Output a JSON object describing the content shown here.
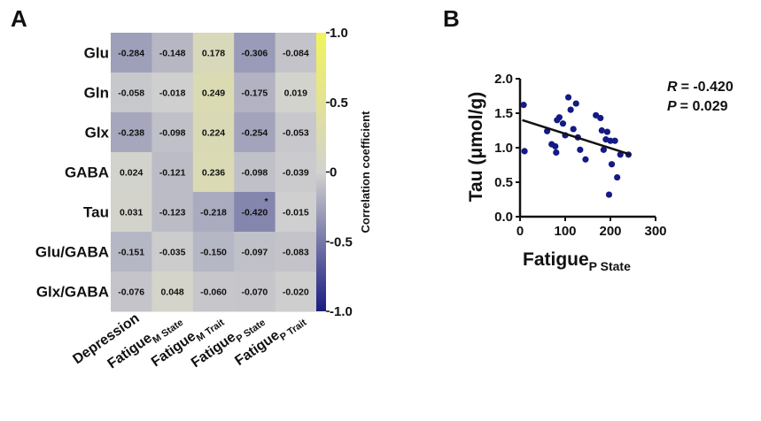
{
  "chart_data": [
    {
      "type": "heatmap",
      "panel_label": "A",
      "rows": [
        "Glu",
        "Gln",
        "Glx",
        "GABA",
        "Tau",
        "Glu/GABA",
        "Glx/GABA"
      ],
      "columns": [
        {
          "main": "Depression",
          "sub": ""
        },
        {
          "main": "Fatigue",
          "sub": "M State"
        },
        {
          "main": "Fatigue",
          "sub": "M Trait"
        },
        {
          "main": "Fatigue",
          "sub": "P State"
        },
        {
          "main": "Fatigue",
          "sub": "P Trait"
        }
      ],
      "values": [
        [
          -0.284,
          -0.148,
          0.178,
          -0.306,
          -0.084
        ],
        [
          -0.058,
          -0.018,
          0.249,
          -0.175,
          0.019
        ],
        [
          -0.238,
          -0.098,
          0.224,
          -0.254,
          -0.053
        ],
        [
          0.024,
          -0.121,
          0.236,
          -0.098,
          -0.039
        ],
        [
          0.031,
          -0.123,
          -0.218,
          -0.42,
          -0.015
        ],
        [
          -0.151,
          -0.035,
          -0.15,
          -0.097,
          -0.083
        ],
        [
          -0.076,
          0.048,
          -0.06,
          -0.07,
          -0.02
        ]
      ],
      "value_labels": [
        [
          "-0.284",
          "-0.148",
          "0.178",
          "-0.306",
          "-0.084"
        ],
        [
          "-0.058",
          "-0.018",
          "0.249",
          "-0.175",
          "0.019"
        ],
        [
          "-0.238",
          "-0.098",
          "0.224",
          "-0.254",
          "-0.053"
        ],
        [
          "0.024",
          "-0.121",
          "0.236",
          "-0.098",
          "-0.039"
        ],
        [
          "0.031",
          "-0.123",
          "-0.218",
          "-0.420",
          "-0.015"
        ],
        [
          "-0.151",
          "-0.035",
          "-0.150",
          "-0.097",
          "-0.083"
        ],
        [
          "-0.076",
          "0.048",
          "-0.060",
          "-0.070",
          "-0.020"
        ]
      ],
      "significance_marks": [
        {
          "row": 4,
          "col": 3,
          "mark": "*"
        }
      ],
      "colorbar": {
        "label": "Correlation coefficient",
        "ticks": [
          "1.0",
          "0.5",
          "0",
          "-0.5",
          "-1.0"
        ],
        "tick_values": [
          1.0,
          0.5,
          0,
          -0.5,
          -1.0
        ],
        "range": [
          -1.0,
          1.0
        ],
        "colors": {
          "low": "#1a1d80",
          "mid": "#d2d2d0",
          "high": "#f3f35a"
        }
      }
    },
    {
      "type": "scatter",
      "panel_label": "B",
      "xlabel": "Fatigue",
      "xlabel_sub": "P State",
      "ylabel": "Tau (μmol/g)",
      "xlim": [
        0,
        300
      ],
      "ylim": [
        0.0,
        2.0
      ],
      "xticks": [
        0,
        100,
        200,
        300
      ],
      "xtick_labels": [
        "0",
        "100",
        "200",
        "300"
      ],
      "yticks": [
        0.0,
        0.5,
        1.0,
        1.5,
        2.0
      ],
      "ytick_labels": [
        "0.0",
        "0.5",
        "1.0",
        "1.5",
        "2.0"
      ],
      "point_color": "#141a85",
      "points": [
        {
          "x": 8,
          "y": 1.62
        },
        {
          "x": 10,
          "y": 0.95
        },
        {
          "x": 60,
          "y": 1.24
        },
        {
          "x": 70,
          "y": 1.05
        },
        {
          "x": 78,
          "y": 1.02
        },
        {
          "x": 80,
          "y": 0.93
        },
        {
          "x": 82,
          "y": 1.4
        },
        {
          "x": 87,
          "y": 1.44
        },
        {
          "x": 95,
          "y": 1.35
        },
        {
          "x": 100,
          "y": 1.18
        },
        {
          "x": 107,
          "y": 1.73
        },
        {
          "x": 112,
          "y": 1.55
        },
        {
          "x": 118,
          "y": 1.27
        },
        {
          "x": 124,
          "y": 1.64
        },
        {
          "x": 128,
          "y": 1.15
        },
        {
          "x": 133,
          "y": 0.97
        },
        {
          "x": 145,
          "y": 0.83
        },
        {
          "x": 168,
          "y": 1.47
        },
        {
          "x": 178,
          "y": 1.43
        },
        {
          "x": 181,
          "y": 1.25
        },
        {
          "x": 185,
          "y": 0.97
        },
        {
          "x": 190,
          "y": 1.12
        },
        {
          "x": 193,
          "y": 1.23
        },
        {
          "x": 197,
          "y": 0.32
        },
        {
          "x": 200,
          "y": 1.1
        },
        {
          "x": 203,
          "y": 0.76
        },
        {
          "x": 210,
          "y": 1.1
        },
        {
          "x": 215,
          "y": 0.57
        },
        {
          "x": 222,
          "y": 0.9
        },
        {
          "x": 240,
          "y": 0.9
        }
      ],
      "fit_line": {
        "x": [
          5,
          245
        ],
        "y": [
          1.4,
          0.9
        ]
      },
      "stats": {
        "r_label": "R",
        "r_value": "= -0.420",
        "p_label": "P",
        "p_value": "= 0.029"
      }
    }
  ]
}
